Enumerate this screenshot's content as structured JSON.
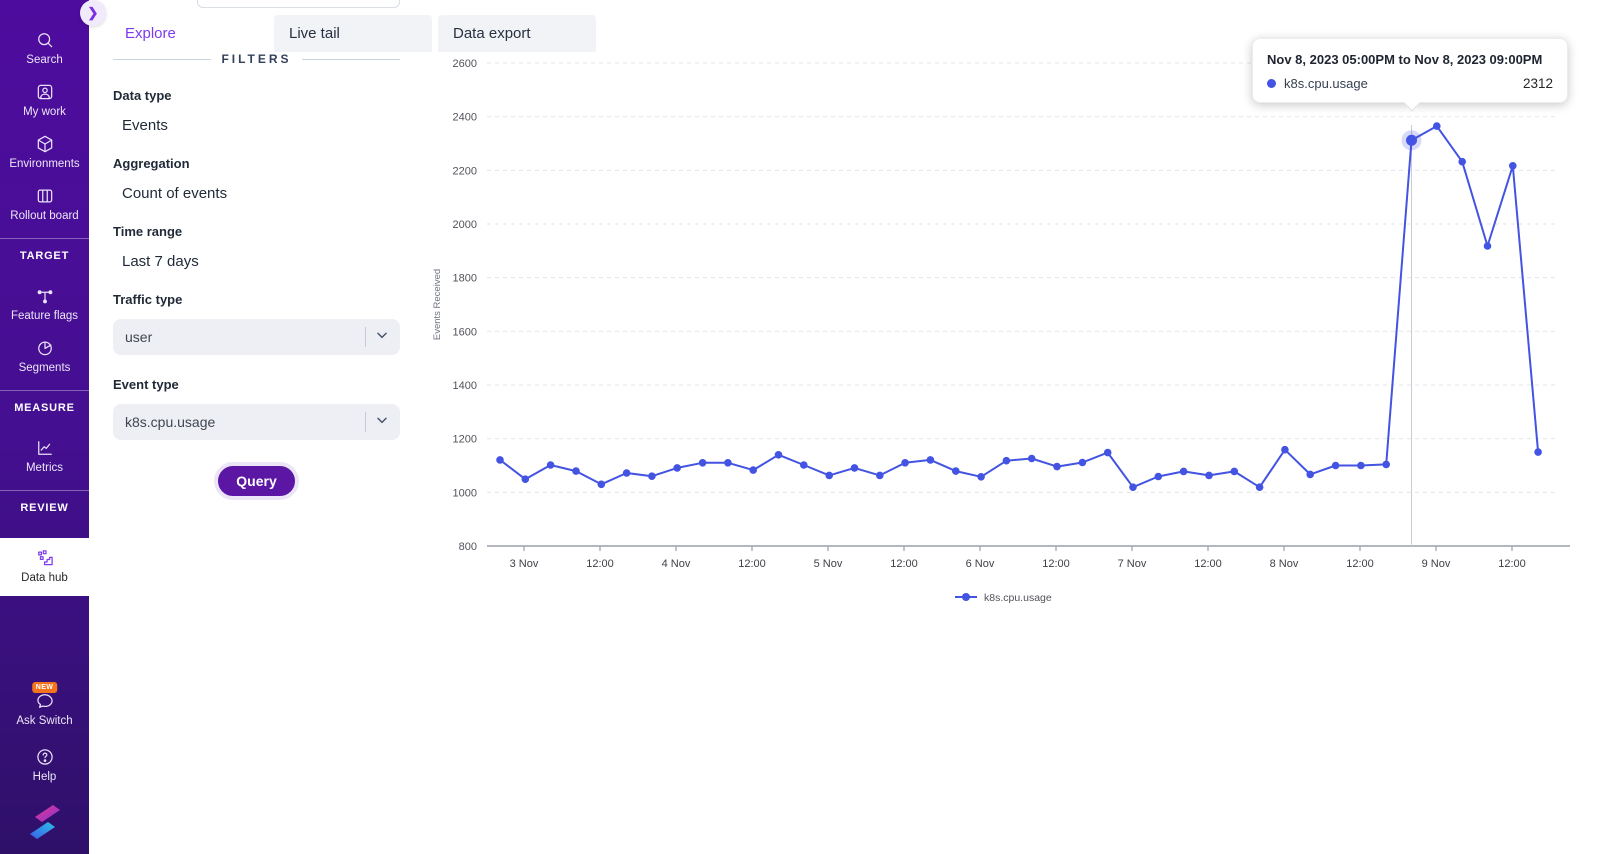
{
  "colors": {
    "accent": "#7c3aed",
    "line": "#4353e2",
    "badge": "#f4731c",
    "query_bg": "#5b16a4",
    "sidebar_top": "#4e0c9e",
    "sidebar_bottom": "#2e1069"
  },
  "sidebar": {
    "expand_button": {
      "icon": "chevron-right-icon"
    },
    "items": [
      {
        "id": "search",
        "label": "Search",
        "icon": "search-icon"
      },
      {
        "id": "my-work",
        "label": "My work",
        "icon": "user-card-icon"
      },
      {
        "id": "environments",
        "label": "Environments",
        "icon": "cube-icon"
      },
      {
        "id": "rollout-board",
        "label": "Rollout board",
        "icon": "columns-icon"
      }
    ],
    "sections": [
      {
        "header": "TARGET",
        "items": [
          {
            "id": "feature-flags",
            "label": "Feature flags",
            "icon": "branch-icon"
          },
          {
            "id": "segments",
            "label": "Segments",
            "icon": "pie-icon"
          }
        ]
      },
      {
        "header": "MEASURE",
        "items": [
          {
            "id": "metrics",
            "label": "Metrics",
            "icon": "line-chart-icon"
          }
        ]
      },
      {
        "header": "REVIEW",
        "items": [
          {
            "id": "data-hub",
            "label": "Data hub",
            "icon": "data-hub-icon",
            "active": true
          }
        ]
      }
    ],
    "footer_items": [
      {
        "id": "ask-switch",
        "label": "Ask Switch",
        "icon": "chat-bubble-icon",
        "badge": "NEW"
      },
      {
        "id": "help",
        "label": "Help",
        "icon": "question-circle-icon"
      }
    ],
    "logo": "switch-logo"
  },
  "tabs": [
    {
      "label": "Explore",
      "active": true
    },
    {
      "label": "Live tail",
      "active": false
    },
    {
      "label": "Data export",
      "active": false
    }
  ],
  "filters": {
    "header": "FILTERS",
    "groups": [
      {
        "label": "Data type",
        "value": "Events",
        "type": "text"
      },
      {
        "label": "Aggregation",
        "value": "Count of events",
        "type": "text"
      },
      {
        "label": "Time range",
        "value": "Last 7 days",
        "type": "text"
      },
      {
        "label": "Traffic type",
        "value": "user",
        "type": "select"
      },
      {
        "label": "Event type",
        "value": "k8s.cpu.usage",
        "type": "select"
      }
    ],
    "query_button": "Query"
  },
  "tooltip": {
    "title": "Nov 8, 2023 05:00PM to Nov 8, 2023 09:00PM",
    "series": "k8s.cpu.usage",
    "value": "2312",
    "dot_color": "#4353e2"
  },
  "chart_data": {
    "type": "line",
    "title": "",
    "xlabel": "",
    "ylabel": "Events Received",
    "ylim": [
      800,
      2600
    ],
    "yticks": [
      800,
      1000,
      1200,
      1400,
      1600,
      1800,
      2000,
      2200,
      2400,
      2600
    ],
    "xticks": [
      "3 Nov",
      "12:00",
      "4 Nov",
      "12:00",
      "5 Nov",
      "12:00",
      "6 Nov",
      "12:00",
      "7 Nov",
      "12:00",
      "8 Nov",
      "12:00",
      "9 Nov",
      "12:00"
    ],
    "grid": "horizontal-dashed",
    "legend_position": "bottom",
    "series": [
      {
        "name": "k8s.cpu.usage",
        "color": "#4353e2",
        "values": [
          1121,
          1049,
          1102,
          1079,
          1030,
          1072,
          1060,
          1091,
          1110,
          1110,
          1083,
          1140,
          1102,
          1063,
          1091,
          1063,
          1110,
          1121,
          1079,
          1058,
          1118,
          1126,
          1096,
          1111,
          1148,
          1019,
          1059,
          1078,
          1063,
          1078,
          1019,
          1159,
          1067,
          1100,
          1100,
          1104,
          2312,
          2365,
          2232,
          1918,
          2217,
          1150
        ]
      }
    ],
    "highlight_index": 36,
    "highlight_value": 2312
  }
}
